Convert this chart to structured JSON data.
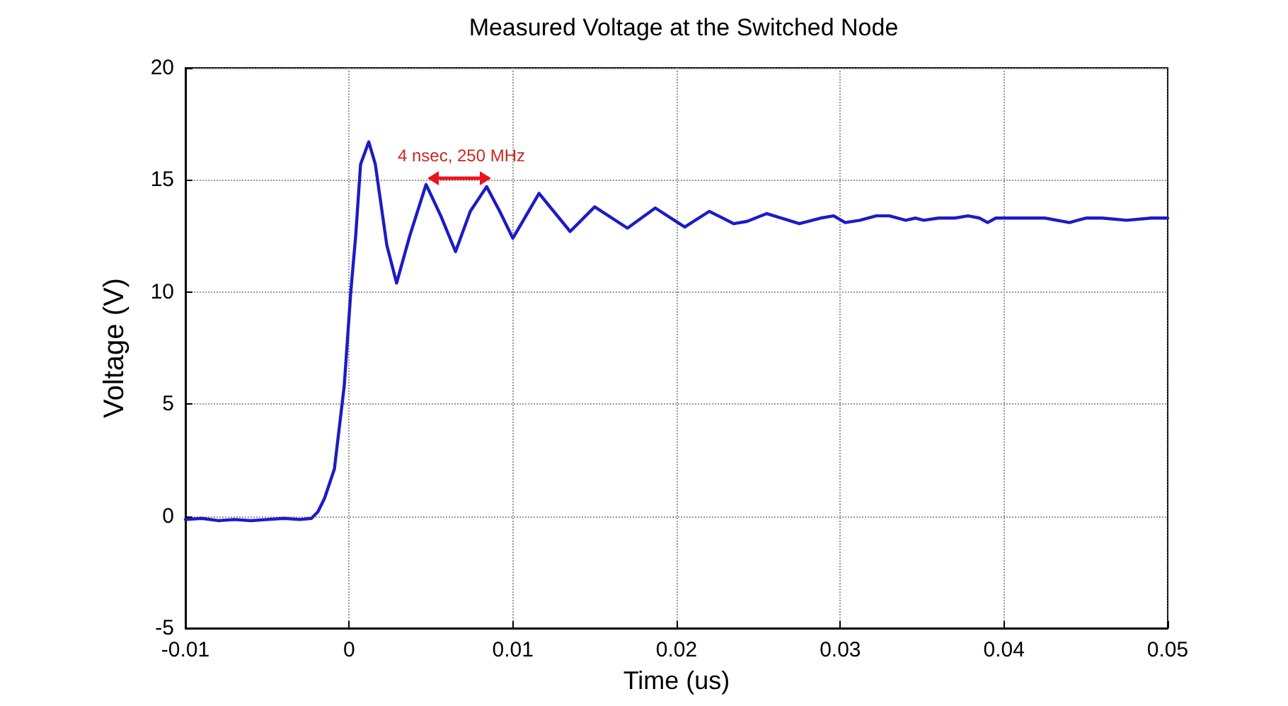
{
  "chart_data": {
    "type": "line",
    "title": "Measured Voltage at the Switched Node",
    "xlabel": "Time (us)",
    "ylabel": "Voltage (V)",
    "x": [
      -0.01,
      -0.009,
      -0.008,
      -0.007,
      -0.006,
      -0.005,
      -0.004,
      -0.003,
      -0.0023,
      -0.0019,
      -0.0015,
      -0.0009,
      -0.0003,
      0.0001,
      0.0004,
      0.0007,
      0.0012,
      0.0016,
      0.0023,
      0.0029,
      0.0037,
      0.0047,
      0.0056,
      0.0065,
      0.0074,
      0.0084,
      0.0092,
      0.01,
      0.0116,
      0.0135,
      0.015,
      0.017,
      0.0187,
      0.0205,
      0.022,
      0.0235,
      0.0243,
      0.0255,
      0.0275,
      0.0288,
      0.0296,
      0.0303,
      0.0312,
      0.0322,
      0.033,
      0.034,
      0.0346,
      0.0351,
      0.036,
      0.037,
      0.0378,
      0.0385,
      0.039,
      0.0395,
      0.041,
      0.0425,
      0.044,
      0.045,
      0.046,
      0.0475,
      0.049,
      0.05
    ],
    "series": [
      {
        "color": "#1c1cc4",
        "values": [
          -0.15,
          -0.1,
          -0.2,
          -0.15,
          -0.2,
          -0.15,
          -0.1,
          -0.15,
          -0.1,
          0.2,
          0.8,
          2.1,
          5.8,
          10,
          12.5,
          15.7,
          16.7,
          15.7,
          12.1,
          10.4,
          12.5,
          14.8,
          13.4,
          11.8,
          13.6,
          14.7,
          13.6,
          12.4,
          14.4,
          12.7,
          13.8,
          12.85,
          13.75,
          12.9,
          13.6,
          13.05,
          13.15,
          13.5,
          13.05,
          13.3,
          13.4,
          13.1,
          13.2,
          13.4,
          13.4,
          13.2,
          13.3,
          13.2,
          13.3,
          13.3,
          13.4,
          13.3,
          13.1,
          13.3,
          13.3,
          13.3,
          13.1,
          13.3,
          13.3,
          13.2,
          13.3,
          13.3
        ]
      }
    ],
    "xlim": [
      -0.01,
      0.05
    ],
    "xticks": [
      -0.01,
      0,
      0.01,
      0.02,
      0.03,
      0.04,
      0.05
    ],
    "ylim": [
      -5,
      20
    ],
    "yticks": [
      -5,
      0,
      5,
      10,
      15,
      20
    ],
    "grid": true,
    "marker": "none",
    "line_style": "solid",
    "annotations": [
      "4 nsec, 250 MHz"
    ]
  }
}
